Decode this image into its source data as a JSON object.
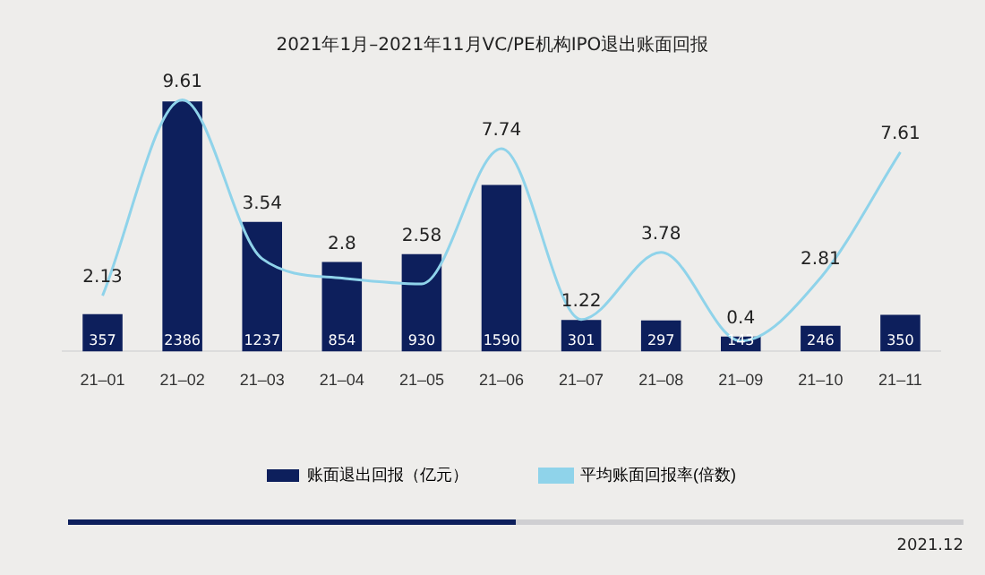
{
  "chart_data": {
    "type": "bar",
    "title": "2021年1月–2021年11月VC/PE机构IPO退出账面回报",
    "categories": [
      "21–01",
      "21–02",
      "21–03",
      "21–04",
      "21–05",
      "21–06",
      "21–07",
      "21–08",
      "21–09",
      "21–10",
      "21–11"
    ],
    "series": [
      {
        "name": "账面退出回报（亿元）",
        "color": "#0d1f5c",
        "values": [
          357,
          2386,
          1237,
          854,
          930,
          1590,
          301,
          297,
          143,
          246,
          350
        ]
      },
      {
        "name": "平均账面回报率(倍数)",
        "type": "line",
        "axis": "y2",
        "color": "#8fd3ea",
        "values": [
          2.13,
          9.61,
          3.54,
          2.8,
          2.58,
          7.74,
          1.22,
          3.78,
          0.4,
          2.81,
          7.61
        ]
      }
    ],
    "data_labels": true,
    "legend": "bottom",
    "grid": false,
    "tick_labels": "x",
    "marker": "none",
    "annotations": [
      "2021.12"
    ]
  }
}
